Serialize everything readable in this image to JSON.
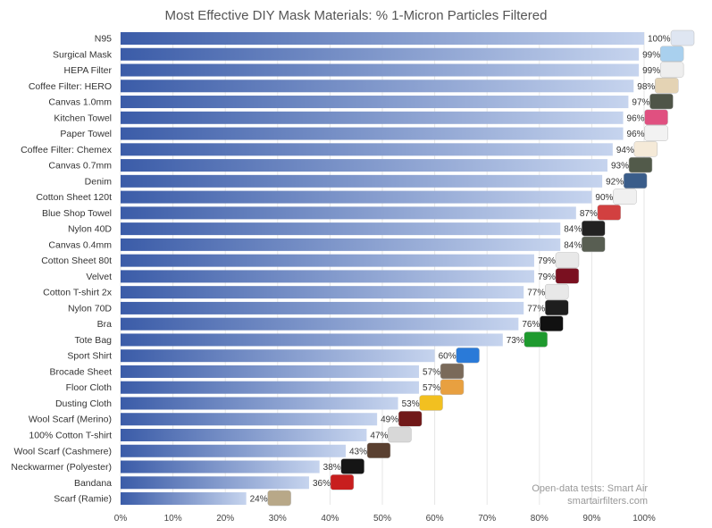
{
  "chart_data": {
    "type": "bar",
    "orientation": "horizontal",
    "title": "Most Effective DIY Mask Materials: % 1-Micron Particles Filtered",
    "categories": [
      "N95",
      "Surgical Mask",
      "HEPA Filter",
      "Coffee Filter: HERO",
      "Canvas 1.0mm",
      "Kitchen Towel",
      "Paper Towel",
      "Coffee Filter: Chemex",
      "Canvas 0.7mm",
      "Denim",
      "Cotton Sheet 120t",
      "Blue Shop Towel",
      "Nylon 40D",
      "Canvas 0.4mm",
      "Cotton Sheet 80t",
      "Velvet",
      "Cotton T-shirt 2x",
      "Nylon 70D",
      "Bra",
      "Tote Bag",
      "Sport Shirt",
      "Brocade Sheet",
      "Floor Cloth",
      "Dusting Cloth",
      "Wool Scarf (Merino)",
      "100% Cotton T-shirt",
      "Wool Scarf (Cashmere)",
      "Neckwarmer (Polyester)",
      "Bandana",
      "Scarf (Ramie)"
    ],
    "values": [
      100,
      99,
      99,
      98,
      97,
      96,
      96,
      94,
      93,
      92,
      90,
      87,
      84,
      84,
      79,
      79,
      77,
      77,
      76,
      73,
      60,
      57,
      57,
      53,
      49,
      47,
      43,
      38,
      36,
      24
    ],
    "value_labels": [
      "100%",
      "99%",
      "99%",
      "98%",
      "97%",
      "96%",
      "96%",
      "94%",
      "93%",
      "92%",
      "90%",
      "87%",
      "84%",
      "84%",
      "79%",
      "79%",
      "77%",
      "77%",
      "76%",
      "73%",
      "60%",
      "57%",
      "57%",
      "53%",
      "49%",
      "47%",
      "43%",
      "38%",
      "36%",
      "24%"
    ],
    "xlim": [
      0,
      100
    ],
    "xticks": [
      0,
      10,
      20,
      30,
      40,
      50,
      60,
      70,
      80,
      90,
      100
    ],
    "xtick_labels": [
      "0%",
      "10%",
      "20%",
      "30%",
      "40%",
      "50%",
      "60%",
      "70%",
      "80%",
      "90%",
      "100%"
    ],
    "grid": true,
    "bar_gradient": [
      "#3b5ca8",
      "#c6d4ee"
    ],
    "icon_colors": [
      "#dfe6f2",
      "#a9d0ee",
      "#eeeeee",
      "#e4d3b4",
      "#4f5548",
      "#e05080",
      "#f2f2f2",
      "#f5ead8",
      "#525a4a",
      "#3a5d8a",
      "#f0f0f0",
      "#d24040",
      "#222222",
      "#585e52",
      "#e8e8e8",
      "#7a1020",
      "#e8e8e8",
      "#1e1e1e",
      "#111111",
      "#1e9a2e",
      "#2a7ad8",
      "#7a6a5a",
      "#e8a040",
      "#f2c020",
      "#701818",
      "#d8d8d8",
      "#5a4030",
      "#151515",
      "#c81e1e",
      "#b8a888"
    ],
    "source": [
      "Open-data tests: Smart Air",
      "smartairfilters.com"
    ]
  }
}
